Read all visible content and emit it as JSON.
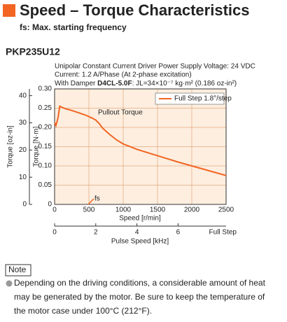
{
  "header": {
    "title": "Speed – Torque Characteristics",
    "subtitle": "fs: Max. starting frequency"
  },
  "model": "PKP235U12",
  "conditions": [
    "Unipolar Constant Current Driver  Power Supply Voltage: 24 VDC",
    "Current: 1.2 A/Phase (At 2-phase excitation)"
  ],
  "damper": {
    "prefix": "With Damper",
    "name": "D4CL-5.0F",
    "inertia": ": JL=34×10⁻⁷ kg·m² (0.186 oz-in²)"
  },
  "chart_data": {
    "type": "line",
    "x": [
      0,
      20,
      50,
      75,
      100,
      150,
      250,
      350,
      450,
      500,
      550,
      600,
      650,
      700,
      800,
      900,
      1000,
      1200,
      1400,
      1600,
      1800,
      2000,
      2200,
      2400,
      2500
    ],
    "series": [
      {
        "name": "Full Step 1.8°/step",
        "color": "#f26522",
        "values": [
          0.213,
          0.205,
          0.225,
          0.255,
          0.253,
          0.249,
          0.244,
          0.238,
          0.232,
          0.228,
          0.224,
          0.219,
          0.21,
          0.198,
          0.182,
          0.168,
          0.157,
          0.143,
          0.132,
          0.121,
          0.11,
          0.1,
          0.09,
          0.08,
          0.075
        ]
      }
    ],
    "xlabel": "Speed [r/min]",
    "ylabel": "Torque [N·m]",
    "y2label": "Torque [oz-in]",
    "x2label": "Pulse Speed [kHz]",
    "x2unit": "Full Step",
    "xlim": [
      0,
      2500
    ],
    "xticks": [
      0,
      500,
      1000,
      1500,
      2000,
      2500
    ],
    "ylim": [
      0,
      0.3
    ],
    "yticks": [
      0,
      0.05,
      {
        "value": 0.1,
        "label": "0.10"
      },
      0.15,
      {
        "value": 0.2,
        "label": "0.20"
      },
      0.25,
      {
        "value": 0.3,
        "label": "0.30"
      }
    ],
    "y2lim": [
      0,
      42.48
    ],
    "y2ticks": [
      0,
      10,
      20,
      30,
      40
    ],
    "x2lim": [
      0,
      8.333
    ],
    "x2ticks": [
      0,
      2,
      4,
      6
    ],
    "grid": true,
    "legend": "upper right",
    "annotations": [
      {
        "text": "Pullout Torque"
      },
      {
        "text": "fs",
        "x": 530
      }
    ]
  },
  "note": {
    "label": "Note",
    "text": [
      "Depending on the driving conditions, a considerable amount of heat",
      "may be generated by the motor. Be sure to keep the temperature of",
      "the motor case under 100°C (212°F)."
    ]
  }
}
